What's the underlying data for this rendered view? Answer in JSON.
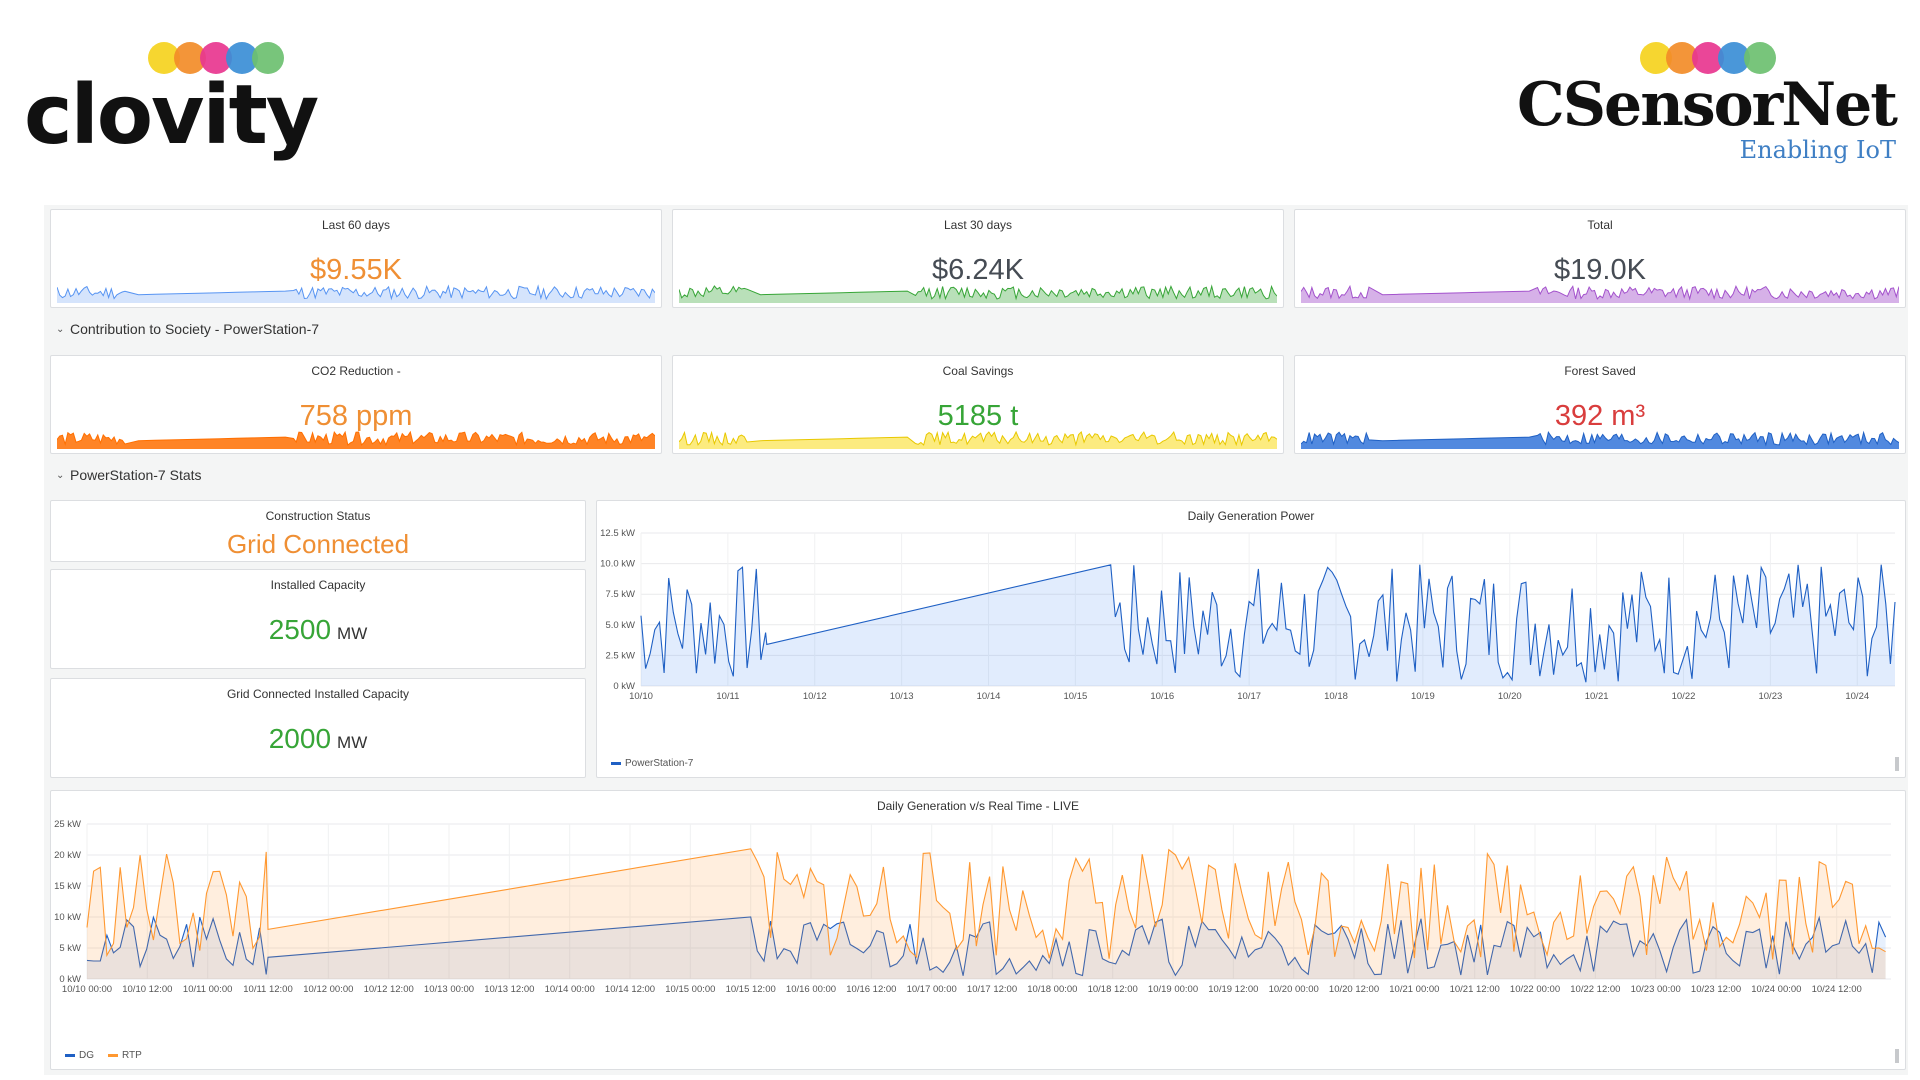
{
  "brand": {
    "left_logo_text": "clovity",
    "right_logo_text": "CSensorNet",
    "right_tagline": "Enabling IoT",
    "dot_colors": [
      "#f5d21e",
      "#f28c28",
      "#e8368f",
      "#3b8ed6",
      "#6cc070"
    ]
  },
  "rows": {
    "society_title": "Contribution to Society - PowerStation-7",
    "stats_title": "PowerStation-7 Stats",
    "chevron_icon": "chevron-down-icon"
  },
  "stats": [
    {
      "title": "Last 60 days",
      "value": "$9.55K",
      "color": "#ef8f34",
      "spark_color": "#5794f2",
      "spark_fill": "rgba(87,148,242,0.25)"
    },
    {
      "title": "Last 30 days",
      "value": "$6.24K",
      "color": "#464c54",
      "spark_color": "#37a537",
      "spark_fill": "rgba(55,165,55,0.35)"
    },
    {
      "title": "Total",
      "value": "$19.0K",
      "color": "#464c54",
      "spark_color": "#a352cc",
      "spark_fill": "rgba(163,82,204,0.45)"
    },
    {
      "title": "CO2 Reduction -",
      "value": "758 ppm",
      "color": "#ef8f34",
      "spark_color": "#ff6f00",
      "spark_fill": "rgba(255,111,0,0.85)"
    },
    {
      "title": "Coal Savings",
      "value": "5185 t",
      "color": "#37a537",
      "spark_color": "#e8c800",
      "spark_fill": "rgba(250,222,42,0.6)"
    },
    {
      "title": "Forest Saved",
      "value": "392 m³",
      "color": "#d93d3d",
      "spark_color": "#1f60c4",
      "spark_fill": "rgba(50,116,217,0.85)"
    }
  ],
  "construction": {
    "title": "Construction Status",
    "value": "Grid Connected",
    "color": "#ef8f34"
  },
  "installed": {
    "title": "Installed Capacity",
    "value": "2500",
    "unit": "MW",
    "color": "#37a537"
  },
  "grid_installed": {
    "title": "Grid Connected Installed Capacity",
    "value": "2000",
    "unit": "MW",
    "color": "#37a537"
  },
  "chart_data": [
    {
      "type": "area",
      "title": "Daily Generation Power",
      "ylim": [
        0,
        12.5
      ],
      "yticks": [
        "0 kW",
        "2.5 kW",
        "5.0 kW",
        "7.5 kW",
        "10.0 kW",
        "12.5 kW"
      ],
      "xticks": [
        "10/10",
        "10/11",
        "10/12",
        "10/13",
        "10/14",
        "10/15",
        "10/16",
        "10/17",
        "10/18",
        "10/19",
        "10/20",
        "10/21",
        "10/22",
        "10/23",
        "10/24"
      ],
      "x_range_days": [
        10.0,
        24.95
      ],
      "gap_days": [
        11.5,
        15.6
      ],
      "gap_values": [
        3.4,
        9.9
      ],
      "series": [
        {
          "name": "PowerStation-7",
          "color": "#1f60c4",
          "fill": "rgba(87,148,242,0.18)",
          "seed": 7,
          "min": 0.3,
          "max": 10.0
        }
      ],
      "legend": "bottom-left",
      "grid": true
    },
    {
      "type": "area",
      "title": "Daily Generation v/s Real Time - LIVE",
      "ylim": [
        0,
        25
      ],
      "yticks": [
        "0 kW",
        "5 kW",
        "10 kW",
        "15 kW",
        "20 kW",
        "25 kW"
      ],
      "xticks": [
        "10/10 00:00",
        "10/10 12:00",
        "10/11 00:00",
        "10/11 12:00",
        "10/12 00:00",
        "10/12 12:00",
        "10/13 00:00",
        "10/13 12:00",
        "10/14 00:00",
        "10/14 12:00",
        "10/15 00:00",
        "10/15 12:00",
        "10/16 00:00",
        "10/16 12:00",
        "10/17 00:00",
        "10/17 12:00",
        "10/18 00:00",
        "10/18 12:00",
        "10/19 00:00",
        "10/19 12:00",
        "10/20 00:00",
        "10/20 12:00",
        "10/21 00:00",
        "10/21 12:00",
        "10/22 00:00",
        "10/22 12:00",
        "10/23 00:00",
        "10/23 12:00",
        "10/24 00:00",
        "10/24 12:00"
      ],
      "x_range_days": [
        10.0,
        24.95
      ],
      "gap_days": [
        11.5,
        15.5
      ],
      "series": [
        {
          "name": "DG",
          "color": "#1f60c4",
          "fill": "rgba(87,148,242,0.14)",
          "seed": 21,
          "min": 0.5,
          "max": 10.0,
          "gap_values": [
            3.5,
            10.0
          ]
        },
        {
          "name": "RTP",
          "color": "#ff9830",
          "fill": "rgba(255,152,48,0.16)",
          "seed": 33,
          "min": 3.0,
          "max": 21.0,
          "gap_values": [
            8.0,
            21.0
          ]
        }
      ],
      "legend": "bottom-left",
      "grid": true
    }
  ]
}
